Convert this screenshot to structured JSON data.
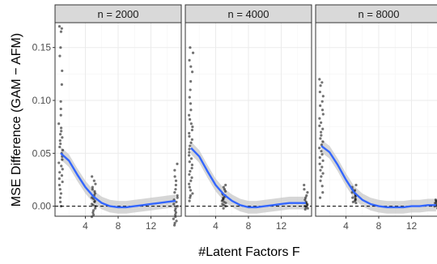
{
  "chart_data": {
    "type": "scatter",
    "facets": [
      {
        "label": "n = 2000",
        "points": [
          [
            1,
            0.17
          ],
          [
            1,
            0.168
          ],
          [
            1,
            0.165
          ],
          [
            1,
            0.15
          ],
          [
            1,
            0.142
          ],
          [
            1,
            0.128
          ],
          [
            1,
            0.115
          ],
          [
            1,
            0.099
          ],
          [
            1,
            0.092
          ],
          [
            1,
            0.086
          ],
          [
            1,
            0.078
          ],
          [
            1,
            0.074
          ],
          [
            1,
            0.071
          ],
          [
            1,
            0.068
          ],
          [
            1,
            0.065
          ],
          [
            1,
            0.062
          ],
          [
            1,
            0.059
          ],
          [
            1,
            0.056
          ],
          [
            1,
            0.053
          ],
          [
            1,
            0.05
          ],
          [
            1,
            0.047
          ],
          [
            1,
            0.044
          ],
          [
            1,
            0.041
          ],
          [
            1,
            0.038
          ],
          [
            1,
            0.035
          ],
          [
            1,
            0.032
          ],
          [
            1,
            0.029
          ],
          [
            1,
            0.026
          ],
          [
            1,
            0.023
          ],
          [
            1,
            0.02
          ],
          [
            1,
            0.016
          ],
          [
            1,
            0.012
          ],
          [
            1,
            0.008
          ],
          [
            1,
            0.004
          ],
          [
            1,
            0.0
          ],
          [
            5,
            0.028
          ],
          [
            5,
            0.024
          ],
          [
            5,
            0.021
          ],
          [
            5,
            0.018
          ],
          [
            5,
            0.016
          ],
          [
            5,
            0.014
          ],
          [
            5,
            0.012
          ],
          [
            5,
            0.01
          ],
          [
            5,
            0.008
          ],
          [
            5,
            0.007
          ],
          [
            5,
            0.005
          ],
          [
            5,
            0.004
          ],
          [
            5,
            0.002
          ],
          [
            5,
            0.001
          ],
          [
            5,
            0.0
          ],
          [
            5,
            -0.002
          ],
          [
            5,
            -0.004
          ],
          [
            5,
            -0.006
          ],
          [
            5,
            -0.008
          ],
          [
            5,
            -0.01
          ],
          [
            15,
            0.04
          ],
          [
            15,
            0.034
          ],
          [
            15,
            0.028
          ],
          [
            15,
            0.024
          ],
          [
            15,
            0.02
          ],
          [
            15,
            0.016
          ],
          [
            15,
            0.013
          ],
          [
            15,
            0.01
          ],
          [
            15,
            0.008
          ],
          [
            15,
            0.006
          ],
          [
            15,
            0.004
          ],
          [
            15,
            0.002
          ],
          [
            15,
            0.0
          ],
          [
            15,
            -0.002
          ],
          [
            15,
            -0.004
          ],
          [
            15,
            -0.006
          ],
          [
            15,
            -0.008
          ],
          [
            15,
            -0.01
          ],
          [
            15,
            -0.012
          ],
          [
            15,
            -0.014
          ],
          [
            15,
            -0.016
          ],
          [
            15,
            -0.018
          ]
        ],
        "smooth": [
          [
            1,
            0.05
          ],
          [
            2,
            0.043
          ],
          [
            3,
            0.03
          ],
          [
            4,
            0.018
          ],
          [
            5,
            0.009
          ],
          [
            6,
            0.003
          ],
          [
            7,
            0.0
          ],
          [
            8,
            -0.001
          ],
          [
            9,
            -0.001
          ],
          [
            10,
            0.0
          ],
          [
            11,
            0.001
          ],
          [
            12,
            0.002
          ],
          [
            13,
            0.003
          ],
          [
            14,
            0.004
          ],
          [
            15,
            0.005
          ]
        ]
      },
      {
        "label": "n = 4000",
        "points": [
          [
            1,
            0.15
          ],
          [
            1,
            0.145
          ],
          [
            1,
            0.138
          ],
          [
            1,
            0.132
          ],
          [
            1,
            0.127
          ],
          [
            1,
            0.118
          ],
          [
            1,
            0.11
          ],
          [
            1,
            0.103
          ],
          [
            1,
            0.097
          ],
          [
            1,
            0.091
          ],
          [
            1,
            0.086
          ],
          [
            1,
            0.082
          ],
          [
            1,
            0.078
          ],
          [
            1,
            0.075
          ],
          [
            1,
            0.072
          ],
          [
            1,
            0.069
          ],
          [
            1,
            0.066
          ],
          [
            1,
            0.063
          ],
          [
            1,
            0.06
          ],
          [
            1,
            0.057
          ],
          [
            1,
            0.054
          ],
          [
            1,
            0.051
          ],
          [
            1,
            0.048
          ],
          [
            1,
            0.045
          ],
          [
            1,
            0.042
          ],
          [
            1,
            0.039
          ],
          [
            1,
            0.036
          ],
          [
            1,
            0.033
          ],
          [
            1,
            0.03
          ],
          [
            1,
            0.027
          ],
          [
            1,
            0.024
          ],
          [
            1,
            0.021
          ],
          [
            1,
            0.018
          ],
          [
            1,
            0.015
          ],
          [
            1,
            0.012
          ],
          [
            1,
            0.01
          ],
          [
            1,
            0.008
          ],
          [
            1,
            0.005
          ],
          [
            5,
            0.02
          ],
          [
            5,
            0.018
          ],
          [
            5,
            0.016
          ],
          [
            5,
            0.014
          ],
          [
            5,
            0.012
          ],
          [
            5,
            0.011
          ],
          [
            5,
            0.01
          ],
          [
            5,
            0.009
          ],
          [
            5,
            0.008
          ],
          [
            5,
            0.007
          ],
          [
            5,
            0.006
          ],
          [
            5,
            0.005
          ],
          [
            5,
            0.004
          ],
          [
            5,
            0.003
          ],
          [
            5,
            0.002
          ],
          [
            5,
            0.001
          ],
          [
            5,
            0.0
          ],
          [
            5,
            -0.002
          ],
          [
            15,
            0.02
          ],
          [
            15,
            0.016
          ],
          [
            15,
            0.013
          ],
          [
            15,
            0.01
          ],
          [
            15,
            0.008
          ],
          [
            15,
            0.006
          ],
          [
            15,
            0.004
          ],
          [
            15,
            0.003
          ],
          [
            15,
            0.002
          ],
          [
            15,
            0.001
          ],
          [
            15,
            0.0
          ],
          [
            15,
            -0.001
          ],
          [
            15,
            -0.002
          ],
          [
            15,
            -0.003
          ]
        ],
        "smooth": [
          [
            1,
            0.055
          ],
          [
            2,
            0.047
          ],
          [
            3,
            0.033
          ],
          [
            4,
            0.02
          ],
          [
            5,
            0.011
          ],
          [
            6,
            0.005
          ],
          [
            7,
            0.001
          ],
          [
            8,
            -0.001
          ],
          [
            9,
            -0.001
          ],
          [
            10,
            0.0
          ],
          [
            11,
            0.001
          ],
          [
            12,
            0.002
          ],
          [
            13,
            0.003
          ],
          [
            14,
            0.003
          ],
          [
            15,
            0.003
          ]
        ]
      },
      {
        "label": "n = 8000",
        "points": [
          [
            1,
            0.12
          ],
          [
            1,
            0.117
          ],
          [
            1,
            0.114
          ],
          [
            1,
            0.108
          ],
          [
            1,
            0.104
          ],
          [
            1,
            0.099
          ],
          [
            1,
            0.095
          ],
          [
            1,
            0.091
          ],
          [
            1,
            0.087
          ],
          [
            1,
            0.083
          ],
          [
            1,
            0.079
          ],
          [
            1,
            0.076
          ],
          [
            1,
            0.073
          ],
          [
            1,
            0.07
          ],
          [
            1,
            0.067
          ],
          [
            1,
            0.064
          ],
          [
            1,
            0.061
          ],
          [
            1,
            0.058
          ],
          [
            1,
            0.055
          ],
          [
            1,
            0.052
          ],
          [
            1,
            0.049
          ],
          [
            1,
            0.046
          ],
          [
            1,
            0.043
          ],
          [
            1,
            0.04
          ],
          [
            1,
            0.037
          ],
          [
            1,
            0.034
          ],
          [
            1,
            0.031
          ],
          [
            1,
            0.028
          ],
          [
            1,
            0.024
          ],
          [
            1,
            0.019
          ],
          [
            1,
            0.013
          ],
          [
            1,
            0.008
          ],
          [
            5,
            0.02
          ],
          [
            5,
            0.018
          ],
          [
            5,
            0.016
          ],
          [
            5,
            0.015
          ],
          [
            5,
            0.014
          ],
          [
            5,
            0.013
          ],
          [
            5,
            0.012
          ],
          [
            5,
            0.011
          ],
          [
            5,
            0.01
          ],
          [
            5,
            0.009
          ],
          [
            5,
            0.008
          ],
          [
            5,
            0.007
          ],
          [
            5,
            0.006
          ],
          [
            5,
            0.005
          ],
          [
            5,
            0.004
          ],
          [
            5,
            0.003
          ],
          [
            15,
            0.006
          ],
          [
            15,
            0.005
          ],
          [
            15,
            0.004
          ],
          [
            15,
            0.003
          ],
          [
            15,
            0.002
          ],
          [
            15,
            0.001
          ],
          [
            15,
            0.0
          ],
          [
            15,
            -0.001
          ],
          [
            15,
            -0.002
          ]
        ],
        "smooth": [
          [
            1,
            0.057
          ],
          [
            2,
            0.051
          ],
          [
            3,
            0.039
          ],
          [
            4,
            0.025
          ],
          [
            5,
            0.013
          ],
          [
            6,
            0.006
          ],
          [
            7,
            0.002
          ],
          [
            8,
            0.0
          ],
          [
            9,
            -0.001
          ],
          [
            10,
            -0.001
          ],
          [
            11,
            -0.001
          ],
          [
            12,
            0.0
          ],
          [
            13,
            0.0
          ],
          [
            14,
            0.001
          ],
          [
            15,
            0.001
          ]
        ]
      }
    ],
    "xlabel": "#Latent Factors F",
    "ylabel": "MSE Difference (GAM − AFM)",
    "xticks": [
      4,
      8,
      12
    ],
    "yticks": [
      0.0,
      0.05,
      0.1,
      0.15
    ],
    "ytick_labels": [
      "0.00",
      "0.05",
      "0.10",
      "0.15"
    ],
    "xlim": [
      0.3,
      15.7
    ],
    "ylim": [
      -0.0095,
      0.1735
    ],
    "reference_line": 0,
    "grid": true,
    "colors": {
      "points": "#000000",
      "smooth": "#3366ff",
      "band": "#c8c8c8",
      "strip": "#d9d9d9",
      "grid": "#ebebeb"
    }
  }
}
